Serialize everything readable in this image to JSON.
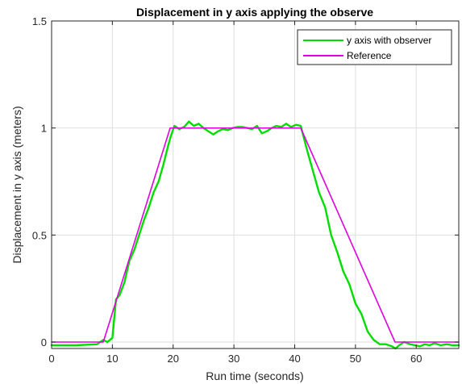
{
  "chart_data": {
    "type": "line",
    "title": "Displacement in y axis applying the observe",
    "xlabel": "Run time (seconds)",
    "ylabel": "Displacement in y axis (meters)",
    "xlim": [
      0,
      67
    ],
    "ylim": [
      -0.03,
      1.5
    ],
    "xticks": [
      0,
      10,
      20,
      30,
      40,
      50,
      60
    ],
    "yticks": [
      0,
      0.5,
      1,
      1.5
    ],
    "grid": true,
    "legend_position": "top-right",
    "series": [
      {
        "name": "y axis with observer",
        "color": "#00dd00",
        "x": [
          0,
          4,
          7.5,
          8.5,
          9.2,
          10,
          10.6,
          11.2,
          12,
          12.8,
          13.6,
          14.4,
          15.2,
          16,
          16.8,
          17.6,
          18.4,
          19.2,
          19.6,
          20.2,
          21,
          21.8,
          22.6,
          23.4,
          24.2,
          25,
          25.8,
          26.6,
          27.4,
          28.2,
          29,
          29.8,
          30.6,
          31.4,
          32.2,
          33,
          33.8,
          34.6,
          35.4,
          36.2,
          37,
          37.8,
          38.6,
          39.4,
          40.2,
          41,
          42,
          43,
          44,
          45,
          46,
          47,
          48,
          49,
          50,
          51,
          52,
          53,
          54,
          55,
          56,
          56.6,
          57.2,
          58,
          59,
          59.8,
          60.6,
          61.4,
          62.2,
          63,
          64,
          65,
          66,
          67
        ],
        "y": [
          -0.015,
          -0.015,
          -0.01,
          0.01,
          0.0,
          0.02,
          0.2,
          0.22,
          0.28,
          0.38,
          0.43,
          0.5,
          0.57,
          0.63,
          0.7,
          0.75,
          0.83,
          0.92,
          0.96,
          1.01,
          0.995,
          1.005,
          1.03,
          1.01,
          1.02,
          1.0,
          0.985,
          0.97,
          0.985,
          0.995,
          0.99,
          1.0,
          1.005,
          1.005,
          1.0,
          0.995,
          1.01,
          0.975,
          0.985,
          1.0,
          1.01,
          1.005,
          1.02,
          1.005,
          1.015,
          1.01,
          0.9,
          0.8,
          0.7,
          0.63,
          0.5,
          0.42,
          0.33,
          0.27,
          0.18,
          0.13,
          0.05,
          0.01,
          -0.01,
          -0.01,
          -0.02,
          -0.03,
          -0.015,
          0.0,
          -0.01,
          -0.015,
          -0.02,
          -0.01,
          -0.015,
          -0.005,
          -0.015,
          -0.01,
          -0.015,
          -0.015
        ]
      },
      {
        "name": "Reference",
        "color": "#dd00dd",
        "x": [
          0,
          8.5,
          19.5,
          41,
          56.5,
          67
        ],
        "y": [
          0,
          0,
          1,
          1,
          0,
          0
        ]
      }
    ]
  }
}
